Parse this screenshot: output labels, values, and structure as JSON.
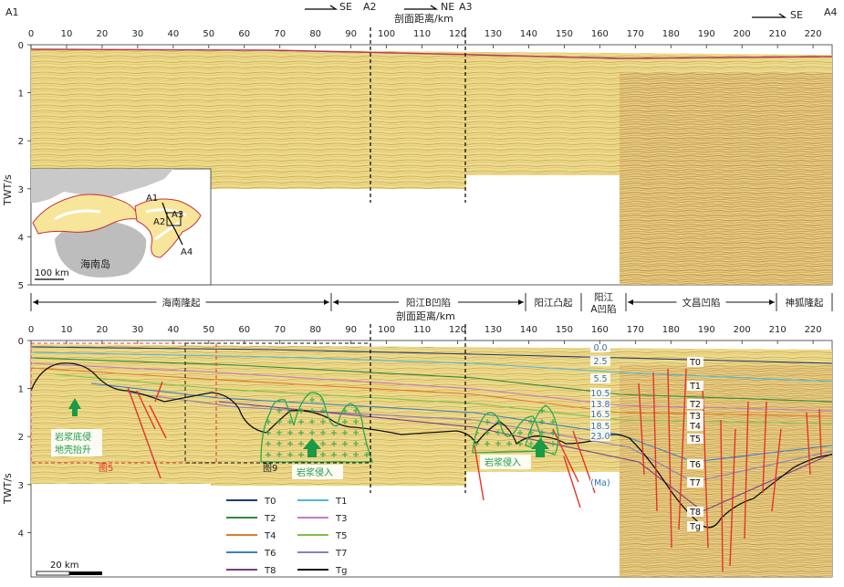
{
  "labels": {
    "a1": "A1",
    "a4": "A4",
    "a2": "A2",
    "a3": "A3",
    "se1": "SE",
    "ne": "NE",
    "se2": "SE",
    "axis_x_top": "剖面距离/km",
    "axis_x_bottom": "剖面距离/km",
    "axis_y_top": "TWT/s",
    "axis_y_bottom": "TWT/s"
  },
  "x_ticks": [
    "0",
    "10",
    "20",
    "30",
    "40",
    "50",
    "60",
    "70",
    "80",
    "90",
    "100",
    "110",
    "120",
    "130",
    "140",
    "150",
    "160",
    "170",
    "180",
    "190",
    "200",
    "210",
    "220"
  ],
  "y_ticks_top": [
    "0",
    "1",
    "2",
    "3",
    "4",
    "5"
  ],
  "y_ticks_bottom": [
    "0",
    "1",
    "2",
    "3",
    "4"
  ],
  "inset": {
    "island": "海南岛",
    "scale": "100 km",
    "a1": "A1",
    "a2": "A2",
    "a3": "A3",
    "a4": "A4"
  },
  "zones": [
    {
      "label": "海南隆起"
    },
    {
      "label": "阳江B凹陷"
    },
    {
      "label": "阳江凸起"
    },
    {
      "label": "阳江A凹陷"
    },
    {
      "label": "文昌凹陷"
    },
    {
      "label": "神狐隆起"
    }
  ],
  "ages": [
    "0.0",
    "2.5",
    "5.5",
    "10.5",
    "13.8",
    "16.5",
    "18.5",
    "23.0",
    "(Ma)"
  ],
  "horizons": [
    "T0",
    "T1",
    "T2",
    "T3",
    "T4",
    "T5",
    "T6",
    "T7",
    "T8",
    "Tg"
  ],
  "annotations": {
    "underplating": "岩浆底侵",
    "uplift": "地壳抬升",
    "intrusion1": "岩浆侵入",
    "intrusion2": "岩浆侵入",
    "fig5": "图5",
    "fig9": "图9"
  },
  "legend": [
    {
      "label": "T0",
      "color": "#1f3b73"
    },
    {
      "label": "T1",
      "color": "#4fb6d8"
    },
    {
      "label": "T2",
      "color": "#2e8b3e"
    },
    {
      "label": "T3",
      "color": "#c77ac4"
    },
    {
      "label": "T4",
      "color": "#e07a2c"
    },
    {
      "label": "T5",
      "color": "#7cc24a"
    },
    {
      "label": "T6",
      "color": "#3a7fc4"
    },
    {
      "label": "T7",
      "color": "#8a7fb8"
    },
    {
      "label": "T8",
      "color": "#7a3b8a"
    },
    {
      "label": "Tg",
      "color": "#111111"
    }
  ],
  "scale_bar": "20 km"
}
